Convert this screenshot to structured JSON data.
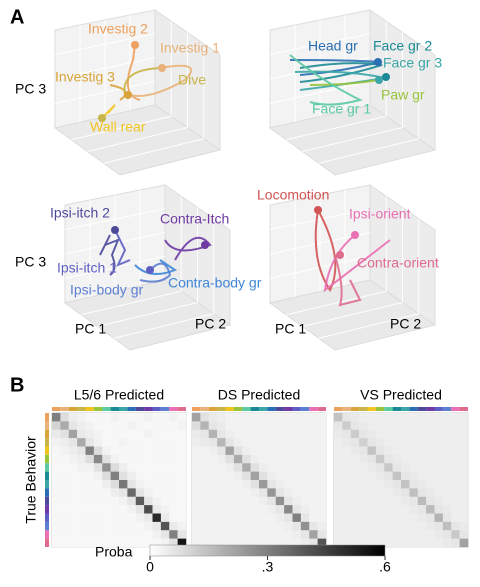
{
  "panel_a": {
    "label": "A",
    "plots": [
      {
        "labels": [
          {
            "text": "Investig 2",
            "color": "#eda15f"
          },
          {
            "text": "Investig 1",
            "color": "#e9b27a"
          },
          {
            "text": "Investig 3",
            "color": "#d9a43a"
          },
          {
            "text": "Dive",
            "color": "#c8b449"
          },
          {
            "text": "Wall rear",
            "color": "#f2c41e"
          }
        ],
        "axes": [
          "PC 3"
        ]
      },
      {
        "labels": [
          {
            "text": "Head gr",
            "color": "#2a6fb3"
          },
          {
            "text": "Face gr 2",
            "color": "#1c8a96"
          },
          {
            "text": "Face gr 3",
            "color": "#3aa6a8"
          },
          {
            "text": "Paw gr",
            "color": "#98c43c"
          },
          {
            "text": "Face gr 1",
            "color": "#5ccaa2"
          }
        ],
        "axes": []
      },
      {
        "labels": [
          {
            "text": "Ipsi-itch 2",
            "color": "#4d4a9c"
          },
          {
            "text": "Contra-Itch",
            "color": "#6f3aa3"
          },
          {
            "text": "Ipsi-itch 1",
            "color": "#5e5fc4"
          },
          {
            "text": "Ipsi-body gr",
            "color": "#5c7fd2"
          },
          {
            "text": "Contra-body gr",
            "color": "#3f86d6"
          }
        ],
        "axes": [
          "PC 3",
          "PC 1",
          "PC 2"
        ]
      },
      {
        "labels": [
          {
            "text": "Locomotion",
            "color": "#d25353"
          },
          {
            "text": "Ipsi-orient",
            "color": "#ea6fb4"
          },
          {
            "text": "Contra-orient",
            "color": "#df6c8e"
          }
        ],
        "axes": [
          "PC 1",
          "PC 2"
        ]
      }
    ]
  },
  "panel_b": {
    "label": "B",
    "y_label": "True Behavior",
    "colorbar_label": "Proba",
    "clim": [
      0,
      0.6
    ],
    "cticks": [
      0,
      {
        "value": 0.3,
        "label": ".3"
      },
      {
        "value": 0.6,
        "label": ".6"
      }
    ],
    "behavior_colors": [
      "#eda15f",
      "#e9b27a",
      "#d9a43a",
      "#c8b449",
      "#f2c41e",
      "#98c43c",
      "#5ccaa2",
      "#1c8a96",
      "#3aa6a8",
      "#2a6fb3",
      "#4d4a9c",
      "#6f3aa3",
      "#5e5fc4",
      "#5c7fd2",
      "#ea6fb4",
      "#df6c8e"
    ],
    "matrices": [
      {
        "title": "L5/6 Predicted",
        "values": [
          [
            0.3,
            0.08,
            0.04,
            0.03,
            0.02,
            0.02,
            0.02,
            0.03,
            0.02,
            0.02,
            0.02,
            0.03,
            0.02,
            0.02,
            0.03,
            0.02
          ],
          [
            0.1,
            0.2,
            0.06,
            0.04,
            0.03,
            0.02,
            0.02,
            0.02,
            0.02,
            0.03,
            0.02,
            0.02,
            0.02,
            0.02,
            0.02,
            0.03
          ],
          [
            0.05,
            0.07,
            0.22,
            0.05,
            0.04,
            0.03,
            0.02,
            0.02,
            0.02,
            0.02,
            0.02,
            0.03,
            0.02,
            0.02,
            0.02,
            0.02
          ],
          [
            0.03,
            0.04,
            0.06,
            0.2,
            0.06,
            0.03,
            0.02,
            0.02,
            0.03,
            0.02,
            0.02,
            0.02,
            0.02,
            0.02,
            0.02,
            0.02
          ],
          [
            0.02,
            0.03,
            0.04,
            0.06,
            0.3,
            0.08,
            0.03,
            0.02,
            0.02,
            0.02,
            0.02,
            0.02,
            0.02,
            0.02,
            0.02,
            0.02
          ],
          [
            0.02,
            0.02,
            0.03,
            0.04,
            0.08,
            0.28,
            0.07,
            0.03,
            0.02,
            0.02,
            0.02,
            0.02,
            0.02,
            0.02,
            0.02,
            0.02
          ],
          [
            0.02,
            0.02,
            0.02,
            0.03,
            0.03,
            0.07,
            0.26,
            0.08,
            0.04,
            0.02,
            0.02,
            0.02,
            0.02,
            0.02,
            0.02,
            0.02
          ],
          [
            0.02,
            0.02,
            0.02,
            0.02,
            0.02,
            0.03,
            0.08,
            0.3,
            0.07,
            0.04,
            0.02,
            0.02,
            0.02,
            0.02,
            0.02,
            0.02
          ],
          [
            0.02,
            0.02,
            0.02,
            0.02,
            0.02,
            0.02,
            0.04,
            0.08,
            0.32,
            0.06,
            0.03,
            0.02,
            0.02,
            0.02,
            0.02,
            0.02
          ],
          [
            0.02,
            0.02,
            0.02,
            0.02,
            0.02,
            0.02,
            0.02,
            0.04,
            0.06,
            0.35,
            0.06,
            0.03,
            0.02,
            0.02,
            0.02,
            0.02
          ],
          [
            0.02,
            0.02,
            0.02,
            0.02,
            0.02,
            0.02,
            0.02,
            0.02,
            0.03,
            0.06,
            0.38,
            0.06,
            0.03,
            0.02,
            0.02,
            0.02
          ],
          [
            0.02,
            0.02,
            0.02,
            0.02,
            0.02,
            0.02,
            0.02,
            0.02,
            0.02,
            0.03,
            0.06,
            0.42,
            0.05,
            0.03,
            0.02,
            0.02
          ],
          [
            0.02,
            0.02,
            0.02,
            0.02,
            0.02,
            0.02,
            0.02,
            0.02,
            0.02,
            0.02,
            0.03,
            0.05,
            0.5,
            0.05,
            0.02,
            0.02
          ],
          [
            0.02,
            0.02,
            0.02,
            0.02,
            0.02,
            0.02,
            0.02,
            0.02,
            0.02,
            0.02,
            0.02,
            0.03,
            0.05,
            0.4,
            0.05,
            0.03
          ],
          [
            0.02,
            0.02,
            0.02,
            0.02,
            0.02,
            0.02,
            0.02,
            0.02,
            0.02,
            0.02,
            0.02,
            0.02,
            0.03,
            0.06,
            0.3,
            0.06
          ],
          [
            0.02,
            0.02,
            0.02,
            0.02,
            0.02,
            0.02,
            0.02,
            0.02,
            0.02,
            0.02,
            0.02,
            0.02,
            0.02,
            0.03,
            0.07,
            0.55
          ]
        ]
      },
      {
        "title": "DS Predicted",
        "values": [
          [
            0.22,
            0.07,
            0.05,
            0.04,
            0.03,
            0.03,
            0.03,
            0.03,
            0.03,
            0.03,
            0.03,
            0.03,
            0.03,
            0.03,
            0.03,
            0.03
          ],
          [
            0.08,
            0.18,
            0.06,
            0.05,
            0.03,
            0.03,
            0.03,
            0.03,
            0.03,
            0.03,
            0.03,
            0.03,
            0.03,
            0.03,
            0.03,
            0.03
          ],
          [
            0.05,
            0.06,
            0.18,
            0.06,
            0.04,
            0.03,
            0.03,
            0.03,
            0.03,
            0.03,
            0.03,
            0.03,
            0.03,
            0.03,
            0.03,
            0.03
          ],
          [
            0.04,
            0.05,
            0.06,
            0.17,
            0.06,
            0.04,
            0.03,
            0.03,
            0.03,
            0.03,
            0.03,
            0.03,
            0.03,
            0.03,
            0.03,
            0.03
          ],
          [
            0.03,
            0.03,
            0.04,
            0.06,
            0.22,
            0.07,
            0.04,
            0.03,
            0.03,
            0.03,
            0.03,
            0.03,
            0.03,
            0.03,
            0.03,
            0.03
          ],
          [
            0.03,
            0.03,
            0.03,
            0.04,
            0.07,
            0.2,
            0.07,
            0.04,
            0.03,
            0.03,
            0.03,
            0.03,
            0.03,
            0.03,
            0.03,
            0.03
          ],
          [
            0.03,
            0.03,
            0.03,
            0.03,
            0.04,
            0.07,
            0.2,
            0.07,
            0.04,
            0.03,
            0.03,
            0.03,
            0.03,
            0.03,
            0.03,
            0.03
          ],
          [
            0.03,
            0.03,
            0.03,
            0.03,
            0.03,
            0.04,
            0.07,
            0.22,
            0.07,
            0.04,
            0.03,
            0.03,
            0.03,
            0.03,
            0.03,
            0.03
          ],
          [
            0.03,
            0.03,
            0.03,
            0.03,
            0.03,
            0.03,
            0.04,
            0.07,
            0.24,
            0.06,
            0.04,
            0.03,
            0.03,
            0.03,
            0.03,
            0.03
          ],
          [
            0.03,
            0.03,
            0.03,
            0.03,
            0.03,
            0.03,
            0.03,
            0.04,
            0.06,
            0.25,
            0.06,
            0.04,
            0.03,
            0.03,
            0.03,
            0.03
          ],
          [
            0.03,
            0.03,
            0.03,
            0.03,
            0.03,
            0.03,
            0.03,
            0.03,
            0.04,
            0.06,
            0.26,
            0.06,
            0.04,
            0.03,
            0.03,
            0.03
          ],
          [
            0.03,
            0.03,
            0.03,
            0.03,
            0.03,
            0.03,
            0.03,
            0.03,
            0.03,
            0.04,
            0.06,
            0.28,
            0.06,
            0.04,
            0.03,
            0.03
          ],
          [
            0.03,
            0.03,
            0.03,
            0.03,
            0.03,
            0.03,
            0.03,
            0.03,
            0.03,
            0.03,
            0.04,
            0.06,
            0.3,
            0.06,
            0.03,
            0.03
          ],
          [
            0.03,
            0.03,
            0.03,
            0.03,
            0.03,
            0.03,
            0.03,
            0.03,
            0.03,
            0.03,
            0.03,
            0.04,
            0.06,
            0.26,
            0.06,
            0.04
          ],
          [
            0.03,
            0.03,
            0.03,
            0.03,
            0.03,
            0.03,
            0.03,
            0.03,
            0.03,
            0.03,
            0.03,
            0.03,
            0.04,
            0.06,
            0.22,
            0.06
          ],
          [
            0.03,
            0.03,
            0.03,
            0.03,
            0.03,
            0.03,
            0.03,
            0.03,
            0.03,
            0.03,
            0.03,
            0.03,
            0.03,
            0.04,
            0.06,
            0.4
          ]
        ]
      },
      {
        "title": "VS Predicted",
        "values": [
          [
            0.14,
            0.06,
            0.05,
            0.04,
            0.04,
            0.04,
            0.04,
            0.04,
            0.04,
            0.04,
            0.04,
            0.04,
            0.04,
            0.04,
            0.04,
            0.04
          ],
          [
            0.06,
            0.12,
            0.06,
            0.05,
            0.04,
            0.04,
            0.04,
            0.04,
            0.04,
            0.04,
            0.04,
            0.04,
            0.04,
            0.04,
            0.04,
            0.04
          ],
          [
            0.05,
            0.06,
            0.12,
            0.06,
            0.05,
            0.04,
            0.04,
            0.04,
            0.04,
            0.04,
            0.04,
            0.04,
            0.04,
            0.04,
            0.04,
            0.04
          ],
          [
            0.04,
            0.05,
            0.06,
            0.11,
            0.06,
            0.05,
            0.04,
            0.04,
            0.04,
            0.04,
            0.04,
            0.04,
            0.04,
            0.04,
            0.04,
            0.04
          ],
          [
            0.04,
            0.04,
            0.05,
            0.06,
            0.14,
            0.06,
            0.05,
            0.04,
            0.04,
            0.04,
            0.04,
            0.04,
            0.04,
            0.04,
            0.04,
            0.04
          ],
          [
            0.04,
            0.04,
            0.04,
            0.05,
            0.06,
            0.13,
            0.06,
            0.05,
            0.04,
            0.04,
            0.04,
            0.04,
            0.04,
            0.04,
            0.04,
            0.04
          ],
          [
            0.04,
            0.04,
            0.04,
            0.04,
            0.05,
            0.06,
            0.13,
            0.06,
            0.05,
            0.04,
            0.04,
            0.04,
            0.04,
            0.04,
            0.04,
            0.04
          ],
          [
            0.04,
            0.04,
            0.04,
            0.04,
            0.04,
            0.05,
            0.06,
            0.14,
            0.06,
            0.05,
            0.04,
            0.04,
            0.04,
            0.04,
            0.04,
            0.04
          ],
          [
            0.04,
            0.04,
            0.04,
            0.04,
            0.04,
            0.04,
            0.05,
            0.06,
            0.14,
            0.06,
            0.05,
            0.04,
            0.04,
            0.04,
            0.04,
            0.04
          ],
          [
            0.04,
            0.04,
            0.04,
            0.04,
            0.04,
            0.04,
            0.04,
            0.05,
            0.06,
            0.15,
            0.06,
            0.05,
            0.04,
            0.04,
            0.04,
            0.04
          ],
          [
            0.04,
            0.04,
            0.04,
            0.04,
            0.04,
            0.04,
            0.04,
            0.04,
            0.05,
            0.06,
            0.16,
            0.06,
            0.05,
            0.04,
            0.04,
            0.04
          ],
          [
            0.04,
            0.04,
            0.04,
            0.04,
            0.04,
            0.04,
            0.04,
            0.04,
            0.04,
            0.05,
            0.06,
            0.16,
            0.06,
            0.05,
            0.04,
            0.04
          ],
          [
            0.04,
            0.04,
            0.04,
            0.04,
            0.04,
            0.04,
            0.04,
            0.04,
            0.04,
            0.04,
            0.05,
            0.06,
            0.18,
            0.06,
            0.04,
            0.04
          ],
          [
            0.04,
            0.04,
            0.04,
            0.04,
            0.04,
            0.04,
            0.04,
            0.04,
            0.04,
            0.04,
            0.04,
            0.05,
            0.06,
            0.15,
            0.06,
            0.05
          ],
          [
            0.04,
            0.04,
            0.04,
            0.04,
            0.04,
            0.04,
            0.04,
            0.04,
            0.04,
            0.04,
            0.04,
            0.04,
            0.05,
            0.06,
            0.13,
            0.06
          ],
          [
            0.04,
            0.04,
            0.04,
            0.04,
            0.04,
            0.04,
            0.04,
            0.04,
            0.04,
            0.04,
            0.04,
            0.04,
            0.04,
            0.05,
            0.06,
            0.22
          ]
        ]
      }
    ]
  }
}
